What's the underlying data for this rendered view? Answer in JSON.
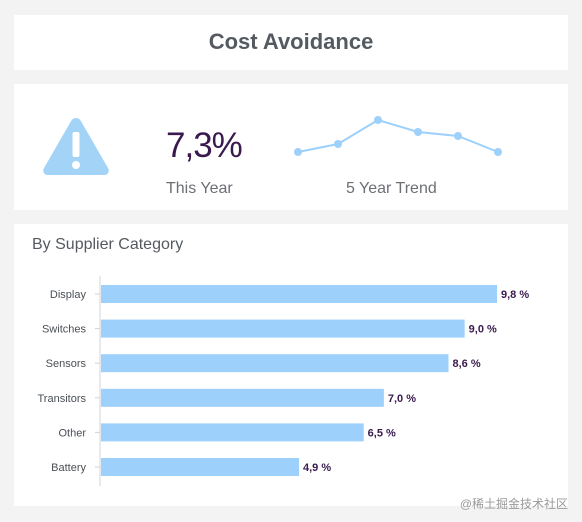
{
  "header": {
    "title": "Cost Avoidance"
  },
  "kpi": {
    "value": "7,3%",
    "value_label": "This Year",
    "trend_label": "5 Year Trend",
    "trend_points": [
      2,
      4,
      10,
      7,
      6,
      2
    ],
    "icon": "warning-icon",
    "icon_color": "#a3d4f7",
    "value_color": "#3a1a4e"
  },
  "chart_data": {
    "type": "bar",
    "orientation": "horizontal",
    "title": "By Supplier Category",
    "categories": [
      "Display",
      "Switches",
      "Sensors",
      "Transitors",
      "Other",
      "Battery"
    ],
    "values": [
      9.8,
      9.0,
      8.6,
      7.0,
      6.5,
      4.9
    ],
    "value_labels": [
      "9,8 %",
      "9,0 %",
      "8,6 %",
      "7,0 %",
      "6,5 %",
      "4,9 %"
    ],
    "xlim": [
      0,
      9.8
    ],
    "bar_color": "#9dd0fa",
    "grid": false
  },
  "watermark": "@稀土掘金技术社区"
}
